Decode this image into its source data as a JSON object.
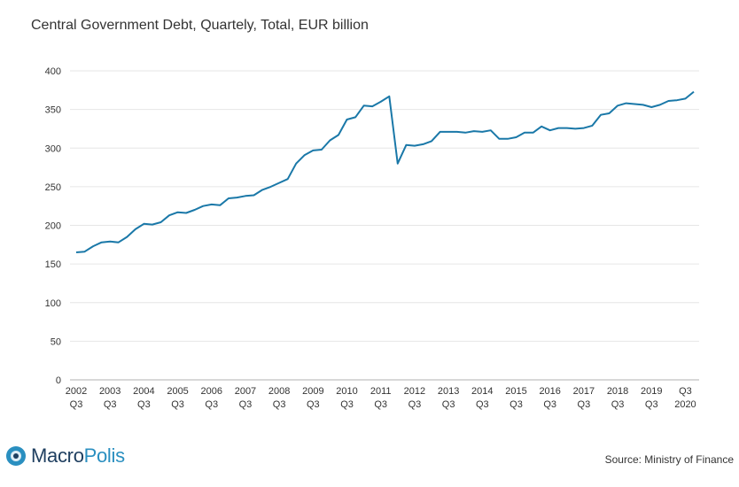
{
  "chart_data": {
    "type": "line",
    "title": "Central Government Debt, Quartely, Total, EUR billion",
    "xlabel": "",
    "ylabel": "",
    "ylim": [
      0,
      400
    ],
    "yticks": [
      0,
      50,
      100,
      150,
      200,
      250,
      300,
      350,
      400
    ],
    "grid": true,
    "line_color": "#1a78a8",
    "x_tick_labels": [
      [
        "2002",
        "Q3"
      ],
      [
        "2003",
        "Q3"
      ],
      [
        "2004",
        "Q3"
      ],
      [
        "2005",
        "Q3"
      ],
      [
        "2006",
        "Q3"
      ],
      [
        "2007",
        "Q3"
      ],
      [
        "2008",
        "Q3"
      ],
      [
        "2009",
        "Q3"
      ],
      [
        "2010",
        "Q3"
      ],
      [
        "2011",
        "Q3"
      ],
      [
        "2012",
        "Q3"
      ],
      [
        "2013",
        "Q3"
      ],
      [
        "2014",
        "Q3"
      ],
      [
        "2015",
        "Q3"
      ],
      [
        "2016",
        "Q3"
      ],
      [
        "2017",
        "Q3"
      ],
      [
        "2018",
        "Q3"
      ],
      [
        "2019",
        "Q3"
      ],
      [
        "Q3",
        "2020"
      ]
    ],
    "series": [
      {
        "name": "Central Government Debt",
        "start": "2002 Q3",
        "values": [
          165,
          166,
          173,
          178,
          179,
          178,
          185,
          195,
          202,
          201,
          204,
          213,
          217,
          216,
          220,
          225,
          227,
          226,
          235,
          236,
          238,
          239,
          246,
          250,
          255,
          260,
          280,
          291,
          297,
          298,
          310,
          317,
          337,
          340,
          355,
          354,
          360,
          367,
          280,
          304,
          303,
          305,
          309,
          321,
          321,
          321,
          320,
          322,
          321,
          323,
          312,
          312,
          314,
          320,
          320,
          328,
          323,
          326,
          326,
          325,
          326,
          329,
          343,
          345,
          355,
          358,
          357,
          356,
          353,
          356,
          361,
          362,
          364,
          373
        ]
      }
    ]
  },
  "branding": {
    "logo_part1": "Macro",
    "logo_part2": "Polis",
    "logo_color_dark": "#1f3f60",
    "logo_color_light": "#2a8fc0"
  },
  "source": "Source: Ministry of Finance"
}
